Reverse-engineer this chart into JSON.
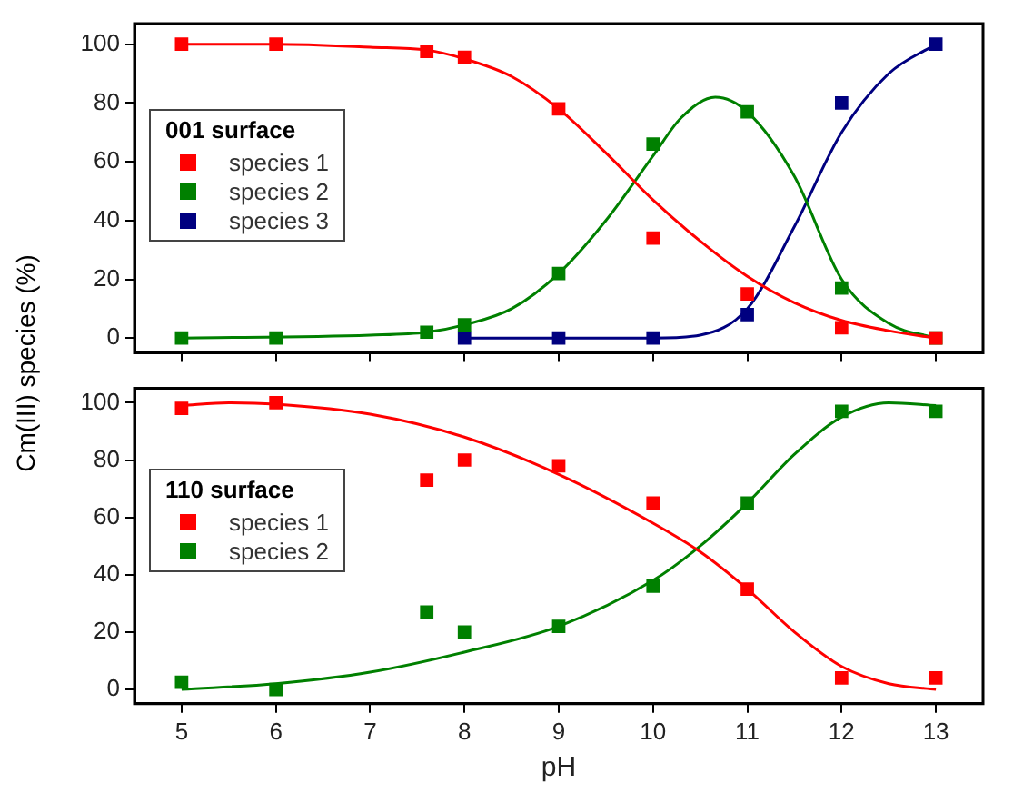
{
  "chart_data": [
    {
      "type": "scatter",
      "ylabel": "Cm(III) species (%)",
      "legend_title": "001 surface",
      "legend": "left",
      "marker": "square",
      "xlim": [
        4.5,
        13.5
      ],
      "xticks": [
        5,
        6,
        7,
        8,
        9,
        10,
        11,
        12,
        13
      ],
      "ylim": [
        -5,
        107
      ],
      "yticks": [
        0,
        20,
        40,
        60,
        80,
        100
      ],
      "tick_labels": "y",
      "grid": false,
      "series": [
        {
          "name": "species 1",
          "color": "#ff0000",
          "x": [
            5,
            6,
            7.6,
            8,
            9,
            10,
            11,
            12,
            13
          ],
          "values": [
            100,
            100,
            97.5,
            95.5,
            78,
            34,
            15,
            3.5,
            0
          ]
        },
        {
          "name": "species 2",
          "color": "#008000",
          "x": [
            5,
            6,
            7.6,
            8,
            9,
            10,
            11,
            12,
            13
          ],
          "values": [
            0,
            0,
            2,
            4.5,
            22,
            66,
            77,
            17,
            0
          ]
        },
        {
          "name": "species 3",
          "color": "#000080",
          "x": [
            8,
            9,
            10,
            11,
            12,
            13
          ],
          "values": [
            0,
            0,
            0,
            8,
            80,
            100
          ]
        },
        {
          "type": "line",
          "marker": "none",
          "color": "#ff0000",
          "x": [
            5,
            6,
            7,
            7.6,
            8,
            8.5,
            9,
            9.5,
            10,
            10.5,
            11,
            11.5,
            12,
            12.5,
            13
          ],
          "values": [
            100,
            100,
            99,
            98,
            95,
            89,
            78,
            63,
            47,
            33,
            21,
            12,
            6,
            2.5,
            0
          ]
        },
        {
          "type": "line",
          "marker": "none",
          "color": "#008000",
          "x": [
            5,
            7,
            7.6,
            8,
            8.5,
            9,
            9.5,
            10,
            10.3,
            10.66,
            11,
            11.5,
            12,
            12.5,
            13
          ],
          "values": [
            0,
            1,
            2,
            4.5,
            10,
            22,
            40,
            62,
            75,
            82,
            77,
            55,
            20,
            5,
            0
          ]
        },
        {
          "type": "line",
          "marker": "none",
          "color": "#000080",
          "x": [
            8,
            9,
            10,
            10.5,
            11,
            11.5,
            12,
            12.5,
            13
          ],
          "values": [
            0,
            0,
            0,
            1,
            10,
            38,
            70,
            90,
            100
          ]
        }
      ]
    },
    {
      "type": "scatter",
      "xlabel": "pH",
      "legend_title": "110 surface",
      "legend": "left",
      "marker": "square",
      "xlim": [
        4.5,
        13.5
      ],
      "xticks": [
        5,
        6,
        7,
        8,
        9,
        10,
        11,
        12,
        13
      ],
      "ylim": [
        -5,
        105
      ],
      "yticks": [
        0,
        20,
        40,
        60,
        80,
        100
      ],
      "grid": false,
      "series": [
        {
          "name": "species 1",
          "color": "#ff0000",
          "x": [
            5,
            6,
            7.6,
            8,
            9,
            10,
            11,
            12,
            13
          ],
          "values": [
            98,
            100,
            73,
            80,
            78,
            65,
            35,
            4,
            4
          ]
        },
        {
          "name": "species 2",
          "color": "#008000",
          "x": [
            5,
            6,
            7.6,
            8,
            9,
            10,
            11,
            12,
            13
          ],
          "values": [
            2.5,
            0,
            27,
            20,
            22,
            36,
            65,
            97,
            97
          ]
        },
        {
          "type": "line",
          "marker": "none",
          "color": "#ff0000",
          "x": [
            5,
            5.5,
            6,
            7,
            8,
            9,
            10,
            10.5,
            11,
            11.5,
            12,
            12.5,
            13
          ],
          "values": [
            99,
            100,
            99.5,
            96,
            88,
            75,
            58,
            48,
            35,
            20,
            8,
            2,
            0
          ]
        },
        {
          "type": "line",
          "marker": "none",
          "color": "#008000",
          "x": [
            5,
            6,
            7,
            8,
            9,
            10,
            10.5,
            11,
            11.5,
            12,
            12.5,
            13
          ],
          "values": [
            0,
            2,
            6,
            13,
            22,
            38,
            50,
            65,
            82,
            95,
            100,
            99
          ]
        }
      ]
    }
  ]
}
